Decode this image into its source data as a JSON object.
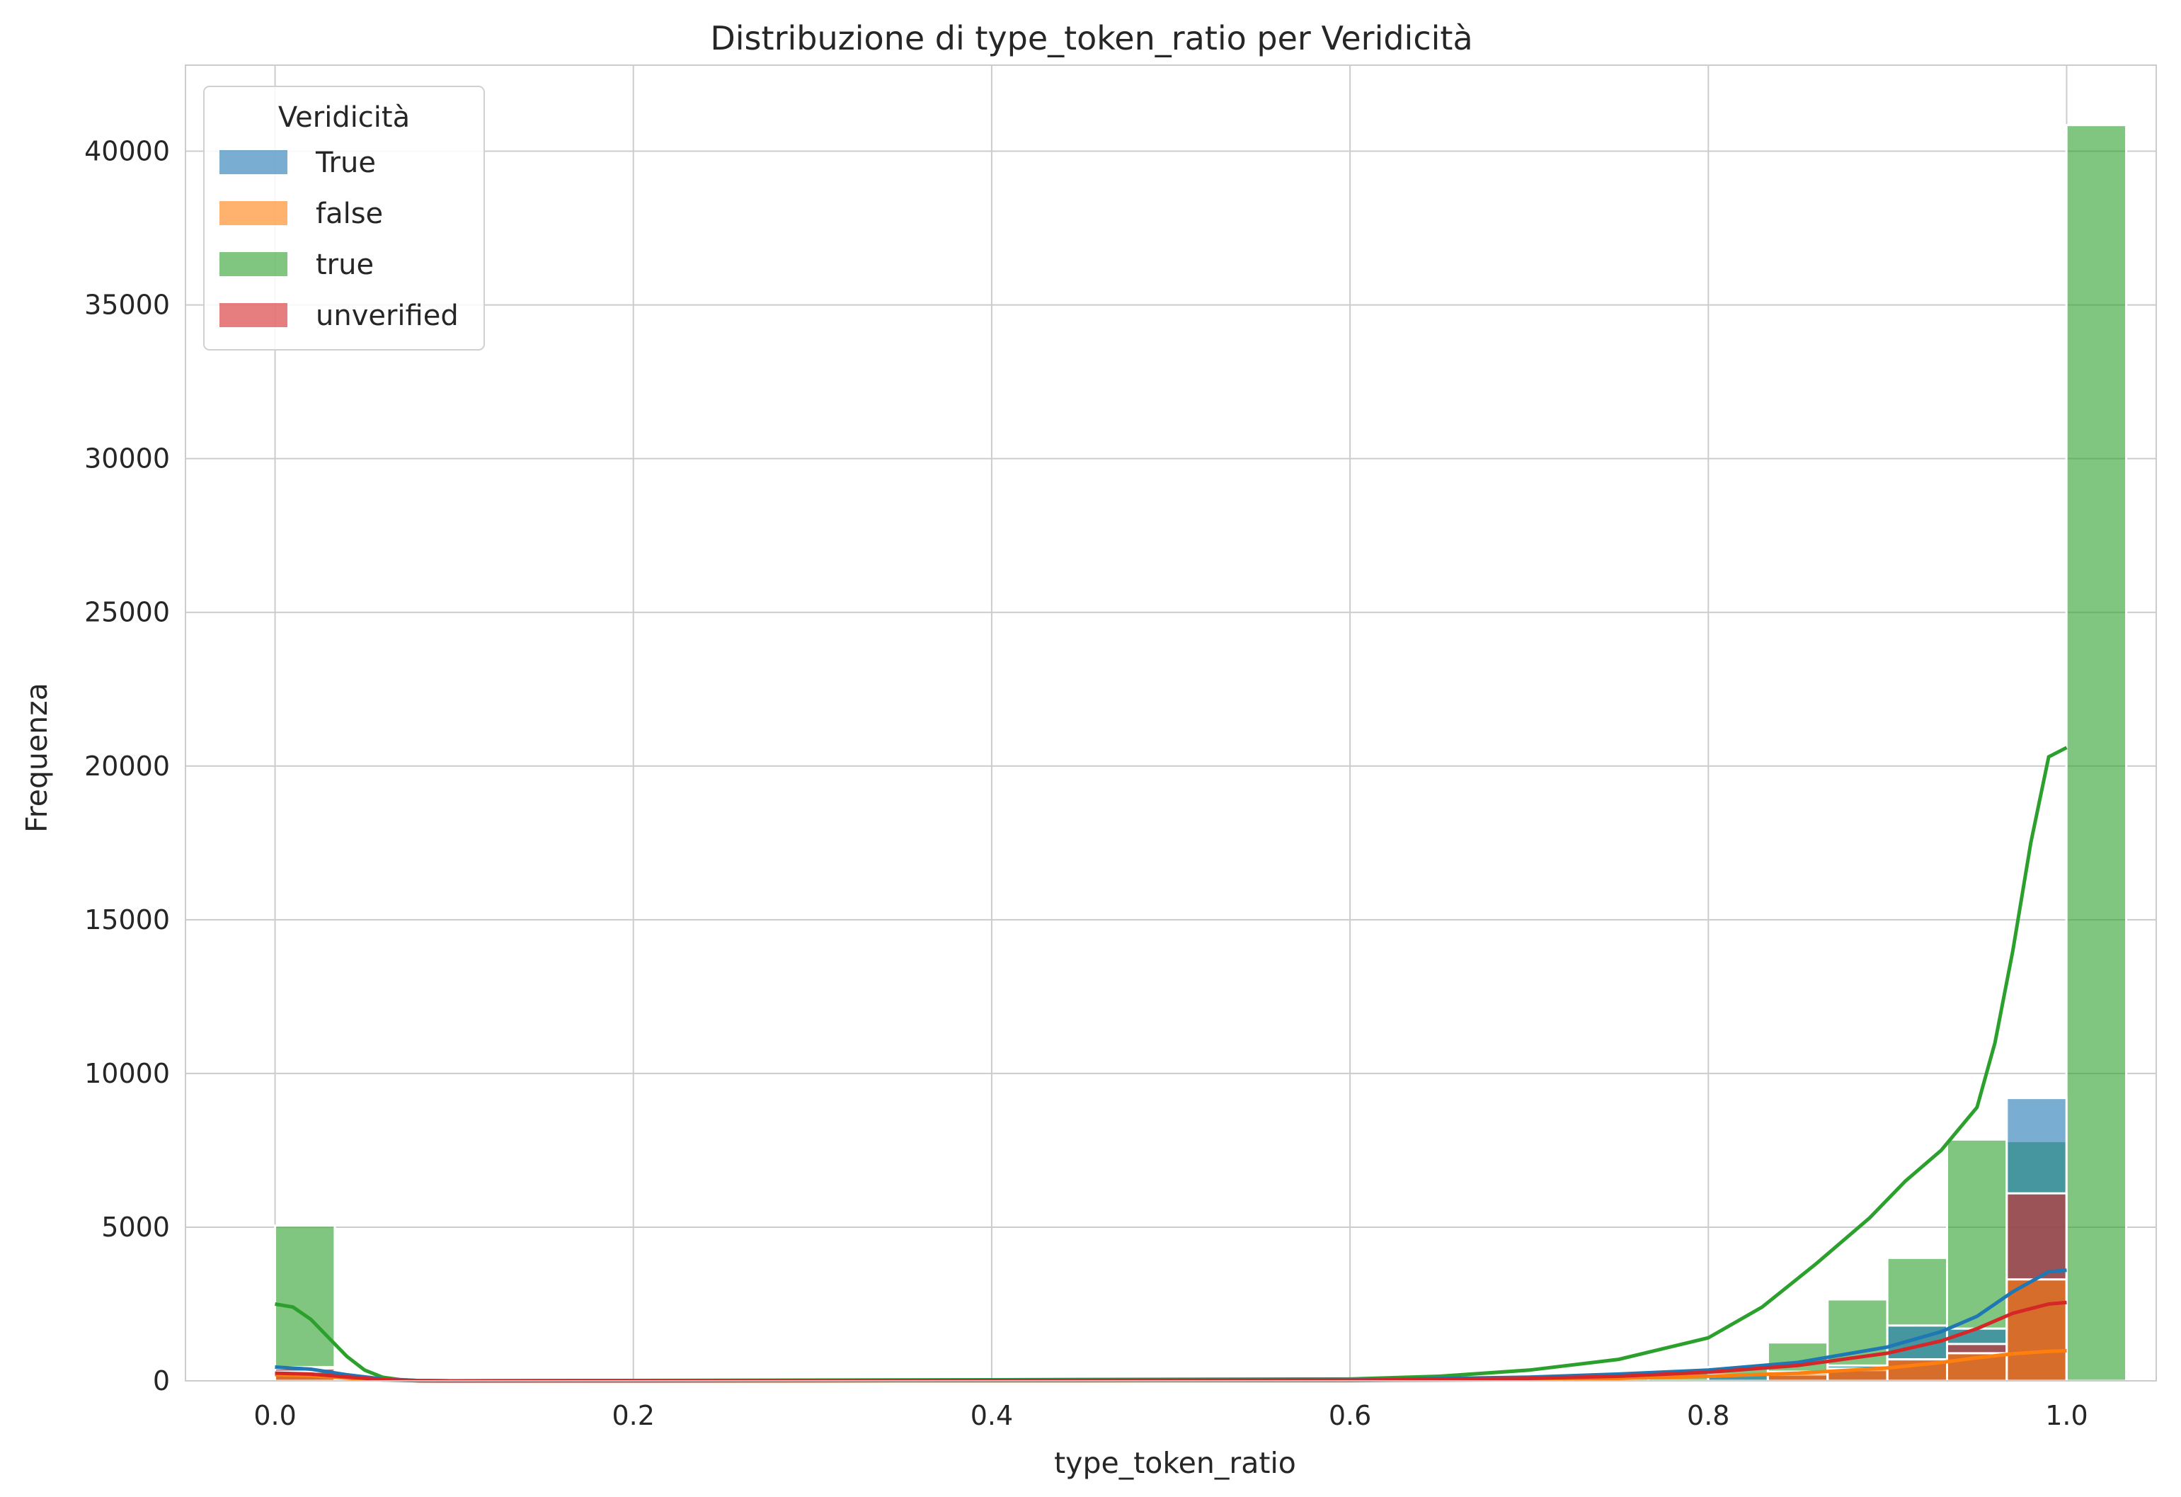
{
  "chart_data": {
    "type": "histogram",
    "title": "Distribuzione di type_token_ratio per Veridicità",
    "xlabel": "type_token_ratio",
    "ylabel": "Frequenza",
    "xlim": [
      -0.05,
      1.05
    ],
    "ylim": [
      0,
      42800
    ],
    "x_ticks": [
      "0.0",
      "0.2",
      "0.4",
      "0.6",
      "0.8",
      "1.0"
    ],
    "x_tick_values": [
      0,
      0.2,
      0.4,
      0.6,
      0.8,
      1.0
    ],
    "y_ticks": [
      "0",
      "5000",
      "10000",
      "15000",
      "20000",
      "25000",
      "30000",
      "35000",
      "40000"
    ],
    "y_tick_values": [
      0,
      5000,
      10000,
      15000,
      20000,
      25000,
      30000,
      35000,
      40000
    ],
    "grid": true,
    "legend": {
      "title": "Veridicità",
      "position": "top-left"
    },
    "bin_width": 0.03333,
    "bin_edges_start": 0.0,
    "series": [
      {
        "name": "True",
        "color": "#1f77b4",
        "bins": [
          0,
          29,
          450
        ],
        "bins_tail": [
          [
            24,
            200
          ],
          [
            25,
            300
          ],
          [
            26,
            500
          ],
          [
            27,
            1800
          ],
          [
            28,
            1700
          ],
          [
            29,
            9200
          ]
        ],
        "kde_x": [
          0,
          0.02,
          0.04,
          0.06,
          0.08,
          0.1,
          0.6,
          0.7,
          0.75,
          0.8,
          0.85,
          0.9,
          0.93,
          0.95,
          0.97,
          0.99,
          1.0
        ],
        "kde_y": [
          450,
          380,
          200,
          60,
          10,
          0,
          30,
          120,
          220,
          350,
          600,
          1100,
          1600,
          2100,
          2900,
          3550,
          3600
        ]
      },
      {
        "name": "false",
        "color": "#ff7f0e",
        "bins": [
          0,
          29,
          300
        ],
        "bins_tail": [
          [
            25,
            250
          ],
          [
            26,
            400
          ],
          [
            27,
            700
          ],
          [
            28,
            900
          ],
          [
            29,
            3300
          ]
        ],
        "kde_x": [
          0,
          0.02,
          0.04,
          0.06,
          0.08,
          0.1,
          0.6,
          0.7,
          0.75,
          0.8,
          0.85,
          0.9,
          0.93,
          0.95,
          0.97,
          0.99,
          1.0
        ],
        "kde_y": [
          200,
          170,
          90,
          30,
          5,
          0,
          10,
          40,
          80,
          150,
          250,
          420,
          600,
          750,
          880,
          960,
          980
        ]
      },
      {
        "name": "true",
        "color": "#2ca02c",
        "bins_full": [
          5050,
          0,
          0,
          0,
          0,
          0,
          0,
          0,
          0,
          0,
          0,
          0,
          0,
          0,
          0,
          0,
          0,
          0,
          0,
          0,
          0,
          0,
          80,
          350,
          450,
          1250,
          2650,
          4000,
          7850,
          7800,
          40850
        ],
        "kde_x": [
          0,
          0.01,
          0.02,
          0.03,
          0.04,
          0.05,
          0.06,
          0.07,
          0.08,
          0.1,
          0.6,
          0.65,
          0.7,
          0.75,
          0.8,
          0.83,
          0.86,
          0.89,
          0.91,
          0.93,
          0.95,
          0.96,
          0.97,
          0.98,
          0.99,
          1.0
        ],
        "kde_y": [
          2500,
          2400,
          2000,
          1400,
          800,
          350,
          120,
          40,
          10,
          0,
          60,
          150,
          350,
          700,
          1400,
          2400,
          3800,
          5300,
          6500,
          7500,
          8900,
          11000,
          14000,
          17500,
          20300,
          20600
        ]
      },
      {
        "name": "unverified",
        "color": "#d62728",
        "bins": [
          0,
          29,
          400
        ],
        "bins_tail": [
          [
            25,
            200
          ],
          [
            26,
            350
          ],
          [
            27,
            700
          ],
          [
            28,
            1200
          ],
          [
            29,
            6100
          ]
        ],
        "kde_x": [
          0,
          0.02,
          0.04,
          0.06,
          0.08,
          0.1,
          0.6,
          0.7,
          0.75,
          0.8,
          0.85,
          0.9,
          0.93,
          0.95,
          0.97,
          0.99,
          1.0
        ],
        "kde_y": [
          250,
          220,
          130,
          40,
          8,
          0,
          20,
          80,
          150,
          280,
          500,
          900,
          1300,
          1700,
          2200,
          2500,
          2550
        ]
      }
    ]
  }
}
